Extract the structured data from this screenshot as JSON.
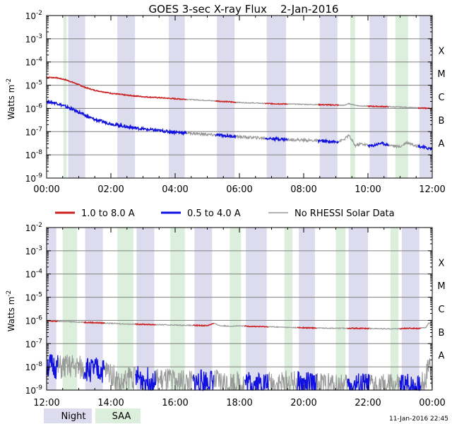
{
  "title": "GOES 3-sec X-ray Flux    2-Jan-2016",
  "footer_timestamp": "11-Jan-2016 22:45",
  "colors": {
    "long_channel": "#cc2222",
    "short_channel": "#1010e0",
    "no_rhessi": "#999999",
    "night": "#dddcee",
    "saa": "#dcefdc",
    "grid": "#808080"
  },
  "chart_data": [
    {
      "type": "line",
      "panel": "top",
      "title": "GOES 3-sec X-ray Flux    2-Jan-2016",
      "ylabel": "Watts m-2",
      "yscale": "log",
      "ylim": [
        1e-09,
        0.01
      ],
      "yticklabels": [
        "10-9",
        "10-8",
        "10-7",
        "10-6",
        "10-5",
        "10-4",
        "10-3",
        "10-2"
      ],
      "flare_classes": [
        "A",
        "B",
        "C",
        "M",
        "X"
      ],
      "xlim_hours": [
        0,
        12
      ],
      "xticklabels": [
        "00:00",
        "02:00",
        "04:00",
        "06:00",
        "08:00",
        "10:00",
        "12:00"
      ],
      "night_intervals_hours": [
        [
          0.67,
          1.2
        ],
        [
          2.2,
          2.75
        ],
        [
          3.8,
          4.3
        ],
        [
          5.3,
          5.85
        ],
        [
          6.85,
          7.45
        ],
        [
          8.5,
          9.05
        ],
        [
          10.05,
          10.6
        ],
        [
          11.6,
          12.0
        ]
      ],
      "saa_intervals_hours": [
        [
          0.52,
          0.62
        ],
        [
          9.45,
          9.6
        ],
        [
          10.85,
          11.25
        ]
      ],
      "series": [
        {
          "name": "1.0 to 8.0 A",
          "x": [
            0,
            0.3,
            0.6,
            0.9,
            1.2,
            1.5,
            2,
            2.5,
            3,
            3.5,
            4,
            4.5,
            5,
            5.5,
            6,
            6.5,
            7,
            7.5,
            8,
            8.5,
            9,
            9.25,
            9.4,
            9.7,
            10,
            10.5,
            11,
            11.5,
            12
          ],
          "y": [
            2.2e-05,
            2.1e-05,
            1.7e-05,
            1.2e-05,
            8e-06,
            6e-06,
            4.5e-06,
            3.7e-06,
            3.2e-06,
            2.9e-06,
            2.6e-06,
            2.4e-06,
            2.2e-06,
            2e-06,
            1.8e-06,
            1.7e-06,
            1.6e-06,
            1.55e-06,
            1.5e-06,
            1.45e-06,
            1.4e-06,
            1.35e-06,
            1.6e-06,
            1.3e-06,
            1.25e-06,
            1.2e-06,
            1.15e-06,
            1.05e-06,
            1e-06
          ]
        },
        {
          "name": "0.5 to 4.0 A",
          "x": [
            0,
            0.3,
            0.6,
            0.9,
            1.2,
            1.5,
            2,
            2.5,
            3,
            3.5,
            4,
            4.5,
            5,
            5.5,
            6,
            6.5,
            7,
            7.5,
            8,
            8.5,
            9,
            9.25,
            9.4,
            9.6,
            9.8,
            10.1,
            10.4,
            10.7,
            11,
            11.2,
            11.5,
            11.8,
            12
          ],
          "y": [
            2e-06,
            1.7e-06,
            1.2e-06,
            8e-07,
            5e-07,
            3.3e-07,
            2.2e-07,
            1.6e-07,
            1.3e-07,
            1.1e-07,
            9.5e-08,
            8.5e-08,
            7.5e-08,
            6.8e-08,
            6e-08,
            5.5e-08,
            5e-08,
            4.6e-08,
            4.3e-08,
            4e-08,
            3.6e-08,
            4.5e-08,
            7e-08,
            2.5e-08,
            3e-08,
            2.4e-08,
            3.2e-08,
            2.6e-08,
            2.2e-08,
            3.5e-08,
            2.5e-08,
            2e-08,
            1.8e-08
          ]
        }
      ]
    },
    {
      "type": "line",
      "panel": "bottom",
      "ylabel": "Watts m-2",
      "yscale": "log",
      "ylim": [
        1e-09,
        0.01
      ],
      "yticklabels": [
        "10-9",
        "10-8",
        "10-7",
        "10-6",
        "10-5",
        "10-4",
        "10-3",
        "10-2"
      ],
      "flare_classes": [
        "A",
        "B",
        "C",
        "M",
        "X"
      ],
      "xlim_hours": [
        12,
        24
      ],
      "xticklabels": [
        "12:00",
        "14:00",
        "16:00",
        "18:00",
        "20:00",
        "22:00",
        "00:00"
      ],
      "night_intervals_hours": [
        [
          12.0,
          12.3
        ],
        [
          13.2,
          13.75
        ],
        [
          14.8,
          15.35
        ],
        [
          16.6,
          17.15
        ],
        [
          18.2,
          18.85
        ],
        [
          19.85,
          20.35
        ],
        [
          21.4,
          22.0
        ],
        [
          23.05,
          23.6
        ]
      ],
      "saa_intervals_hours": [
        [
          12.5,
          12.95
        ],
        [
          14.2,
          14.7
        ],
        [
          15.85,
          16.3
        ],
        [
          17.7,
          18.05
        ],
        [
          19.4,
          19.65
        ],
        [
          21.0,
          21.3
        ],
        [
          22.7,
          22.95
        ]
      ],
      "series": [
        {
          "name": "1.0 to 8.0 A",
          "x": [
            12,
            12.5,
            13,
            13.5,
            14,
            14.5,
            15,
            15.5,
            16,
            16.5,
            17,
            17.2,
            17.4,
            17.8,
            18,
            18.5,
            19,
            19.5,
            20,
            20.5,
            21,
            21.5,
            22,
            22.5,
            23,
            23.3,
            23.6,
            23.8,
            23.9,
            24
          ],
          "y": [
            9.5e-07,
            9e-07,
            8.5e-07,
            8e-07,
            7.5e-07,
            7e-07,
            6.8e-07,
            6.5e-07,
            6.3e-07,
            6.1e-07,
            6e-07,
            7.5e-07,
            5.9e-07,
            5.7e-07,
            5.8e-07,
            5.5e-07,
            5.3e-07,
            5e-07,
            4.8e-07,
            4.7e-07,
            4.6e-07,
            4.6e-07,
            4.5e-07,
            4.4e-07,
            4.4e-07,
            4.6e-07,
            4.5e-07,
            5e-07,
            8e-07,
            6e-07
          ]
        },
        {
          "name": "0.5 to 4.0 A",
          "x": [
            12,
            12.4,
            12.8,
            13.2,
            13.6,
            14,
            14.3,
            14.6,
            15,
            15.5,
            16,
            16.5,
            17,
            17.5,
            18,
            18.5,
            19,
            19.5,
            20,
            20.5,
            21,
            21.5,
            22,
            22.5,
            23,
            23.4,
            23.6,
            23.8,
            23.9,
            24
          ],
          "y": [
            1.2e-08,
            9e-09,
            1e-08,
            8e-09,
            7e-09,
            6e-09,
            1.5e-09,
            4e-09,
            3e-09,
            2.5e-09,
            2.5e-09,
            2e-09,
            2.5e-09,
            2e-09,
            2e-09,
            2e-09,
            1.8e-09,
            2e-09,
            1.8e-09,
            1.6e-09,
            1.6e-09,
            1.5e-09,
            1.5e-09,
            1.5e-09,
            1.4e-09,
            1.5e-09,
            1.2e-09,
            3e-09,
            1.8e-08,
            3e-09
          ]
        }
      ]
    }
  ],
  "legend": {
    "items": [
      {
        "label": "1.0 to 8.0 A",
        "color": "#cc2222"
      },
      {
        "label": "0.5 to 4.0 A",
        "color": "#1010e0"
      },
      {
        "label": "No RHESSI Solar Data",
        "color": "#999999"
      }
    ],
    "night_label": "Night",
    "saa_label": "SAA"
  }
}
